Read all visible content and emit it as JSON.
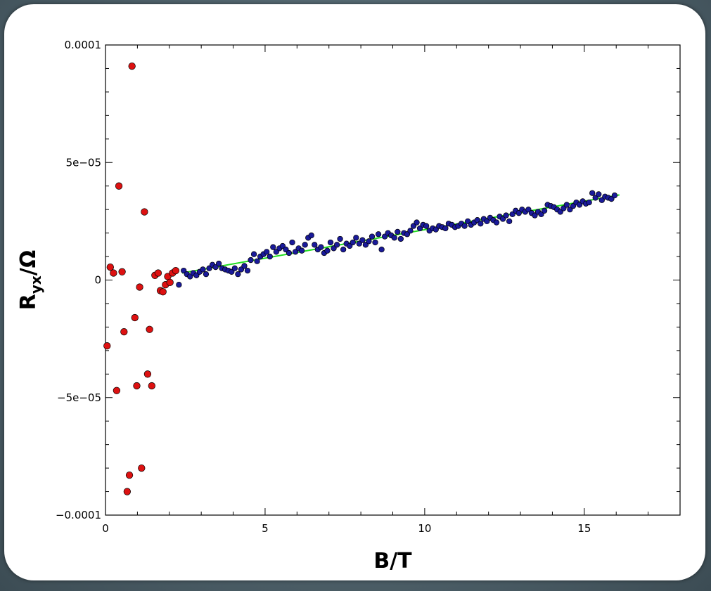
{
  "chart_data": {
    "type": "scatter",
    "xlabel": "B/T",
    "ylabel_main": "R",
    "ylabel_sub": "yx",
    "ylabel_unit": "/Ω",
    "xlim": [
      0,
      18
    ],
    "ylim": [
      -0.0001,
      0.0001
    ],
    "x_ticks": [
      {
        "value": 0,
        "label": "0"
      },
      {
        "value": 5,
        "label": "5"
      },
      {
        "value": 10,
        "label": "10"
      },
      {
        "value": 15,
        "label": "15"
      }
    ],
    "y_ticks": [
      {
        "value": 0.0001,
        "label": "0.0001"
      },
      {
        "value": 5e-05,
        "label": "5e−05"
      },
      {
        "value": 0,
        "label": "0"
      },
      {
        "value": -5e-05,
        "label": "−5e−05"
      },
      {
        "value": -0.0001,
        "label": "−0.0001"
      }
    ],
    "grid": false,
    "series": [
      {
        "color": "#dd1111",
        "marker": "circle",
        "points": [
          [
            0.05,
            -2.8e-05
          ],
          [
            0.15,
            5.5e-06
          ],
          [
            0.25,
            3e-06
          ],
          [
            0.35,
            -4.7e-05
          ],
          [
            0.42,
            4e-05
          ],
          [
            0.52,
            3.5e-06
          ],
          [
            0.58,
            -2.2e-05
          ],
          [
            0.68,
            -9e-05
          ],
          [
            0.75,
            -8.3e-05
          ],
          [
            0.83,
            9.1e-05
          ],
          [
            0.92,
            -1.6e-05
          ],
          [
            0.98,
            -4.5e-05
          ],
          [
            1.07,
            -3e-06
          ],
          [
            1.13,
            -8e-05
          ],
          [
            1.22,
            2.9e-05
          ],
          [
            1.32,
            -4e-05
          ],
          [
            1.38,
            -2.1e-05
          ],
          [
            1.45,
            -4.5e-05
          ],
          [
            1.55,
            2e-06
          ],
          [
            1.65,
            3e-06
          ],
          [
            1.72,
            -4.5e-06
          ],
          [
            1.8,
            -5e-06
          ],
          [
            1.88,
            -2e-06
          ],
          [
            1.95,
            1.5e-06
          ],
          [
            2.02,
            -1e-06
          ],
          [
            2.1,
            3e-06
          ],
          [
            2.2,
            4e-06
          ]
        ]
      },
      {
        "color": "#1a1a9a",
        "marker": "circle",
        "points": [
          [
            2.3,
            -2e-06
          ],
          [
            2.45,
            4e-06
          ],
          [
            2.55,
            2.5e-06
          ],
          [
            2.65,
            1.5e-06
          ],
          [
            2.75,
            3e-06
          ],
          [
            2.85,
            2e-06
          ],
          [
            2.95,
            3.5e-06
          ],
          [
            3.05,
            4.5e-06
          ],
          [
            3.15,
            2.5e-06
          ],
          [
            3.25,
            5e-06
          ],
          [
            3.35,
            6.5e-06
          ],
          [
            3.45,
            5.5e-06
          ],
          [
            3.55,
            7e-06
          ],
          [
            3.65,
            5e-06
          ],
          [
            3.75,
            4.5e-06
          ],
          [
            3.85,
            4e-06
          ],
          [
            3.95,
            3.5e-06
          ],
          [
            4.05,
            5e-06
          ],
          [
            4.15,
            2.5e-06
          ],
          [
            4.25,
            4.5e-06
          ],
          [
            4.35,
            6e-06
          ],
          [
            4.45,
            4e-06
          ],
          [
            4.55,
            8.5e-06
          ],
          [
            4.65,
            1.1e-05
          ],
          [
            4.75,
            8e-06
          ],
          [
            4.85,
            1e-05
          ],
          [
            4.95,
            1.1e-05
          ],
          [
            5.05,
            1.2e-05
          ],
          [
            5.15,
            1e-05
          ],
          [
            5.25,
            1.4e-05
          ],
          [
            5.35,
            1.2e-05
          ],
          [
            5.45,
            1.35e-05
          ],
          [
            5.55,
            1.45e-05
          ],
          [
            5.65,
            1.3e-05
          ],
          [
            5.75,
            1.15e-05
          ],
          [
            5.85,
            1.6e-05
          ],
          [
            5.95,
            1.2e-05
          ],
          [
            6.05,
            1.35e-05
          ],
          [
            6.15,
            1.25e-05
          ],
          [
            6.25,
            1.5e-05
          ],
          [
            6.35,
            1.8e-05
          ],
          [
            6.45,
            1.9e-05
          ],
          [
            6.55,
            1.5e-05
          ],
          [
            6.65,
            1.3e-05
          ],
          [
            6.75,
            1.4e-05
          ],
          [
            6.85,
            1.15e-05
          ],
          [
            6.95,
            1.25e-05
          ],
          [
            7.05,
            1.6e-05
          ],
          [
            7.15,
            1.35e-05
          ],
          [
            7.25,
            1.5e-05
          ],
          [
            7.35,
            1.75e-05
          ],
          [
            7.45,
            1.3e-05
          ],
          [
            7.55,
            1.55e-05
          ],
          [
            7.65,
            1.45e-05
          ],
          [
            7.75,
            1.6e-05
          ],
          [
            7.85,
            1.8e-05
          ],
          [
            7.95,
            1.55e-05
          ],
          [
            8.05,
            1.7e-05
          ],
          [
            8.15,
            1.5e-05
          ],
          [
            8.25,
            1.65e-05
          ],
          [
            8.35,
            1.85e-05
          ],
          [
            8.45,
            1.6e-05
          ],
          [
            8.55,
            1.95e-05
          ],
          [
            8.65,
            1.3e-05
          ],
          [
            8.75,
            1.85e-05
          ],
          [
            8.85,
            2e-05
          ],
          [
            8.95,
            1.9e-05
          ],
          [
            9.05,
            1.8e-05
          ],
          [
            9.15,
            2.05e-05
          ],
          [
            9.25,
            1.75e-05
          ],
          [
            9.35,
            2e-05
          ],
          [
            9.45,
            1.95e-05
          ],
          [
            9.55,
            2.1e-05
          ],
          [
            9.65,
            2.3e-05
          ],
          [
            9.75,
            2.45e-05
          ],
          [
            9.85,
            2.2e-05
          ],
          [
            9.95,
            2.35e-05
          ],
          [
            10.05,
            2.3e-05
          ],
          [
            10.15,
            2.1e-05
          ],
          [
            10.25,
            2.2e-05
          ],
          [
            10.35,
            2.15e-05
          ],
          [
            10.45,
            2.3e-05
          ],
          [
            10.55,
            2.25e-05
          ],
          [
            10.65,
            2.2e-05
          ],
          [
            10.75,
            2.4e-05
          ],
          [
            10.85,
            2.35e-05
          ],
          [
            10.95,
            2.25e-05
          ],
          [
            11.05,
            2.3e-05
          ],
          [
            11.15,
            2.4e-05
          ],
          [
            11.25,
            2.3e-05
          ],
          [
            11.35,
            2.5e-05
          ],
          [
            11.45,
            2.35e-05
          ],
          [
            11.55,
            2.45e-05
          ],
          [
            11.65,
            2.55e-05
          ],
          [
            11.75,
            2.4e-05
          ],
          [
            11.85,
            2.6e-05
          ],
          [
            11.95,
            2.5e-05
          ],
          [
            12.05,
            2.65e-05
          ],
          [
            12.15,
            2.55e-05
          ],
          [
            12.25,
            2.45e-05
          ],
          [
            12.35,
            2.7e-05
          ],
          [
            12.45,
            2.6e-05
          ],
          [
            12.55,
            2.75e-05
          ],
          [
            12.65,
            2.5e-05
          ],
          [
            12.75,
            2.8e-05
          ],
          [
            12.85,
            2.95e-05
          ],
          [
            12.95,
            2.85e-05
          ],
          [
            13.05,
            3e-05
          ],
          [
            13.15,
            2.9e-05
          ],
          [
            13.25,
            3e-05
          ],
          [
            13.35,
            2.85e-05
          ],
          [
            13.45,
            2.75e-05
          ],
          [
            13.55,
            2.9e-05
          ],
          [
            13.65,
            2.8e-05
          ],
          [
            13.75,
            2.95e-05
          ],
          [
            13.85,
            3.2e-05
          ],
          [
            13.95,
            3.15e-05
          ],
          [
            14.05,
            3.1e-05
          ],
          [
            14.15,
            3e-05
          ],
          [
            14.25,
            2.9e-05
          ],
          [
            14.35,
            3.05e-05
          ],
          [
            14.45,
            3.2e-05
          ],
          [
            14.55,
            3e-05
          ],
          [
            14.65,
            3.15e-05
          ],
          [
            14.75,
            3.3e-05
          ],
          [
            14.85,
            3.2e-05
          ],
          [
            14.95,
            3.35e-05
          ],
          [
            15.05,
            3.25e-05
          ],
          [
            15.15,
            3.3e-05
          ],
          [
            15.25,
            3.7e-05
          ],
          [
            15.35,
            3.5e-05
          ],
          [
            15.45,
            3.65e-05
          ],
          [
            15.55,
            3.4e-05
          ],
          [
            15.65,
            3.55e-05
          ],
          [
            15.75,
            3.5e-05
          ],
          [
            15.85,
            3.45e-05
          ],
          [
            15.95,
            3.6e-05
          ]
        ]
      }
    ],
    "fit_line": {
      "color": "#22dd22",
      "x": [
        2.4,
        16.1
      ],
      "y": [
        3e-06,
        3.62e-05
      ]
    }
  }
}
